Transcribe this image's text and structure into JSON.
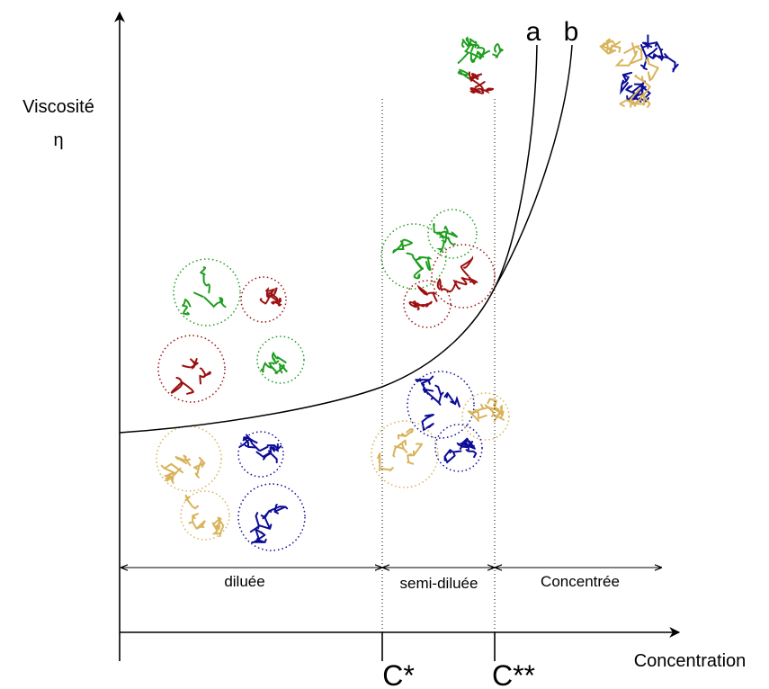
{
  "y_axis": {
    "label": "Viscosité",
    "symbol": "η"
  },
  "x_axis": {
    "label": "Concentration",
    "markers": [
      "C*",
      "C**"
    ]
  },
  "regions": [
    "diluée",
    "semi-diluée",
    "Concentrée"
  ],
  "curves": [
    "a",
    "b"
  ]
}
